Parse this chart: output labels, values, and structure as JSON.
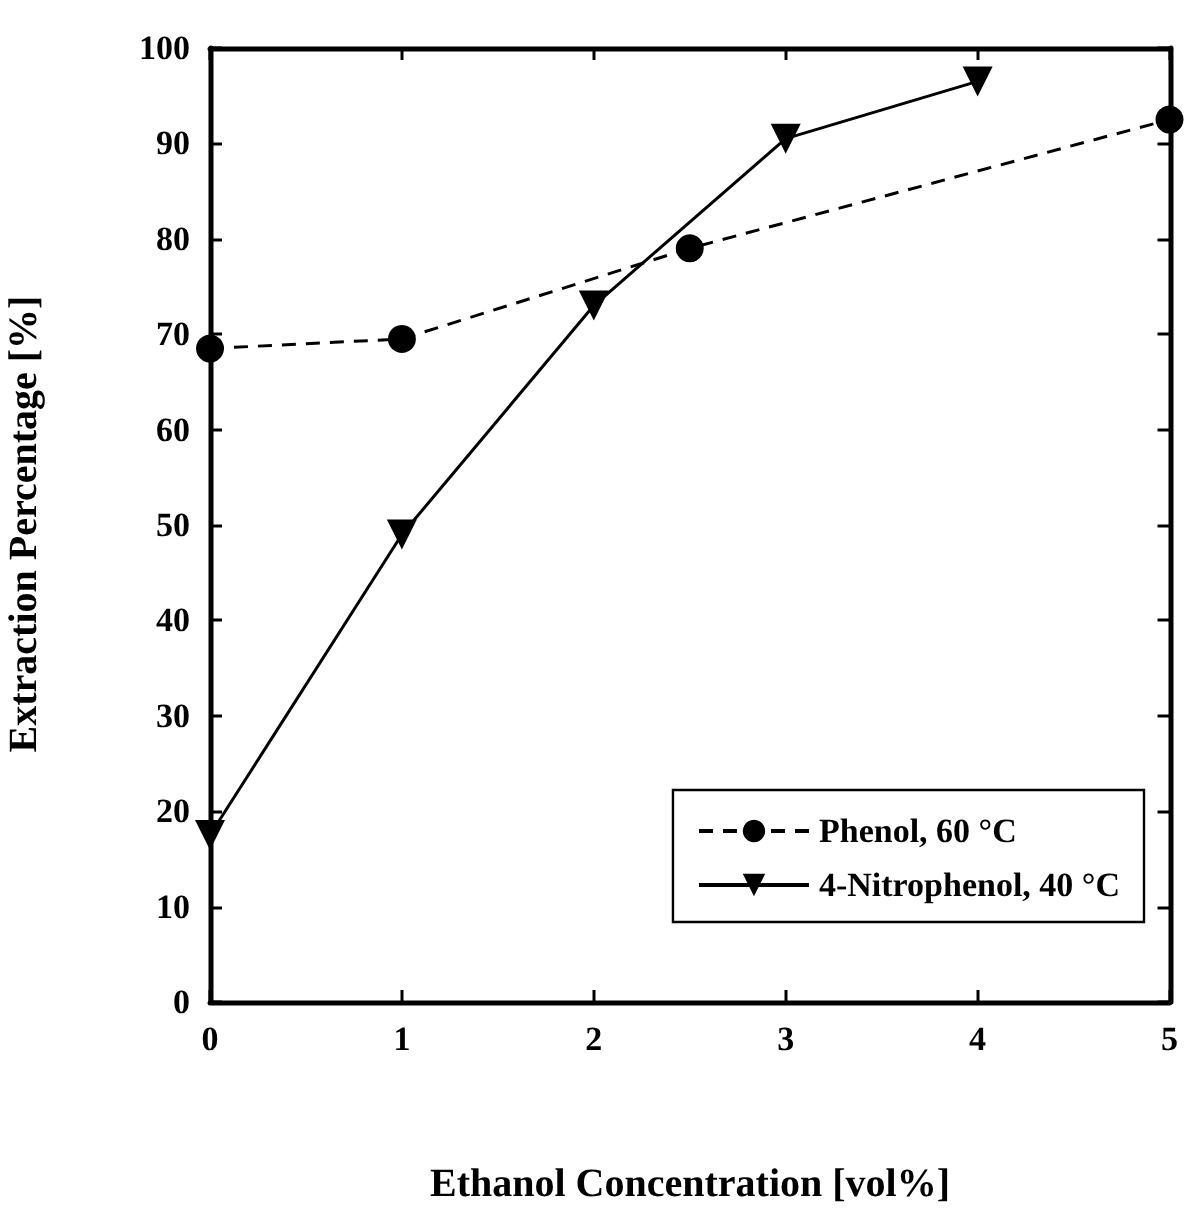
{
  "chart_data": {
    "type": "line",
    "xlabel": "Ethanol Concentration [vol%]",
    "ylabel": "Extraction Percentage [%]",
    "xlim": [
      0,
      5
    ],
    "xticks": [
      0,
      1,
      2,
      3,
      4,
      5
    ],
    "ylim": [
      0,
      100
    ],
    "yticks": [
      0,
      10,
      20,
      30,
      40,
      50,
      60,
      70,
      80,
      90,
      100
    ],
    "grid": false,
    "legend": "bottom right",
    "series": [
      {
        "name": "Phenol, 60 °C",
        "color": "#000000",
        "x": [
          0,
          1,
          2.5,
          5
        ],
        "values": [
          68.5,
          69.5,
          79,
          92.5
        ],
        "marker": "circle",
        "line_style": "dashed"
      },
      {
        "name": "4-Nitrophenol, 40 °C",
        "color": "#000000",
        "x": [
          0,
          1,
          2,
          3,
          4
        ],
        "values": [
          17.5,
          49,
          73,
          90.5,
          96.5
        ],
        "marker": "triangle",
        "line_style": "solid"
      }
    ]
  }
}
